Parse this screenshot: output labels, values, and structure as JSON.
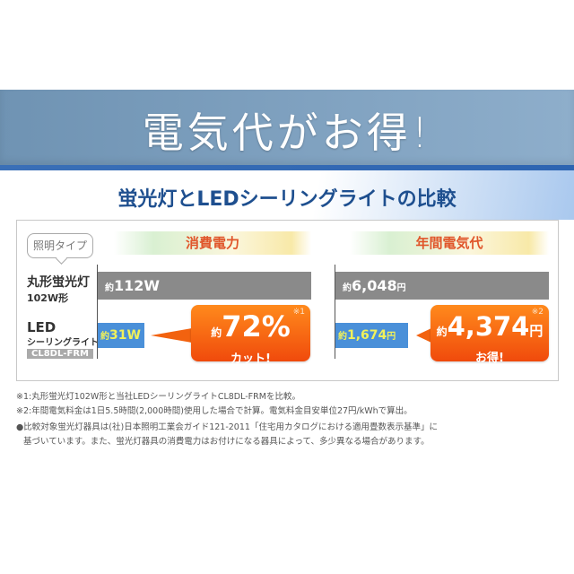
{
  "banner": {
    "title": "電気代がお得!"
  },
  "subtitle": "蛍光灯とLEDシーリングライトの比較",
  "label_bubble": "照明タイプ",
  "rows": {
    "fluorescent": {
      "name": "丸形蛍光灯",
      "size": "102W形"
    },
    "led": {
      "name": "LED",
      "sub": "シーリングライト",
      "model": "CL8DL-FRM"
    }
  },
  "power": {
    "header": "消費電力",
    "fluorescent_prefix": "約",
    "fluorescent_value": "112W",
    "led_prefix": "約",
    "led_value": "31W",
    "callout": {
      "prefix": "約",
      "value": "72%",
      "text": "カット!",
      "note": "※1"
    }
  },
  "cost": {
    "header": "年間電気代",
    "fluorescent_prefix": "約",
    "fluorescent_value": "6,048",
    "fluorescent_unit": "円",
    "led_prefix": "約",
    "led_value": "1,674",
    "led_unit": "円",
    "callout": {
      "prefix": "約",
      "value": "4,374",
      "unit": "円",
      "text": "お得!",
      "note": "※2"
    }
  },
  "notes": [
    "※1:丸形蛍光灯102W形と当社LEDシーリングライトCL8DL-FRMを比較。",
    "※2:年間電気料金は1日5.5時間(2,000時間)使用した場合で計算。電気料金目安単位27円/kWhで算出。",
    "●比較対象蛍光灯器具は(社)日本照明工業会ガイド121-2011「住宅用カタログにおける適用畳数表示基準」に",
    "基づいています。また、蛍光灯器具の消費電力はお付けになる器具によって、多少異なる場合があります。"
  ]
}
